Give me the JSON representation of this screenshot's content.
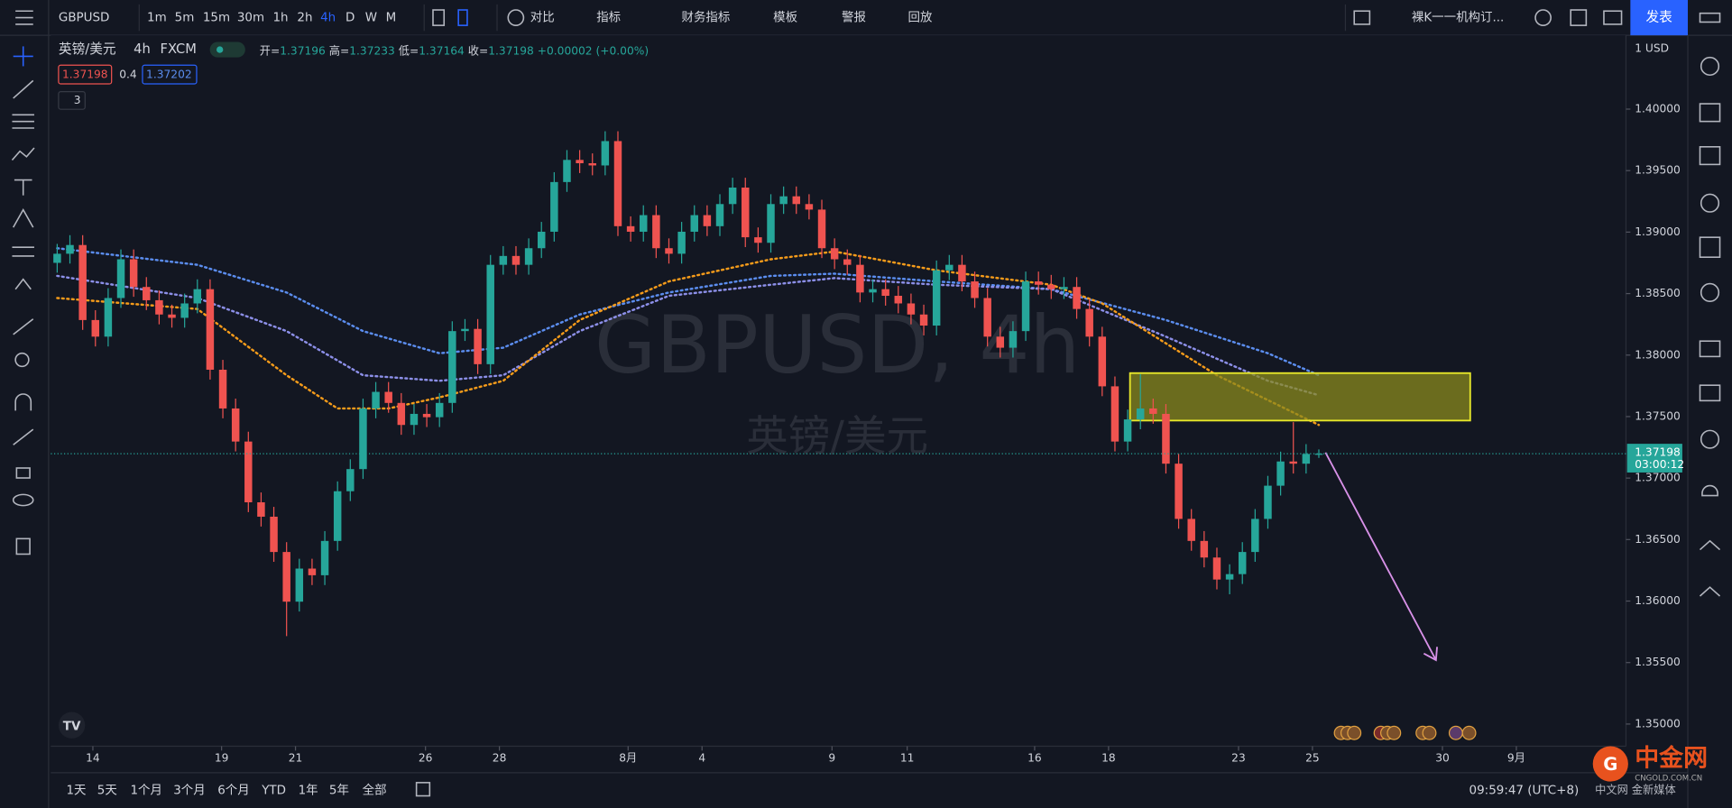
{
  "toolbar": {
    "symbol": "GBPUSD",
    "intervals": [
      "1m",
      "5m",
      "15m",
      "30m",
      "1h",
      "2h",
      "4h",
      "D",
      "W",
      "M"
    ],
    "active_interval": 6,
    "tools": [
      "对比",
      "指标",
      "财务指标",
      "模板",
      "警报",
      "回放"
    ],
    "layout_name": "裸K一一机构订...",
    "publish": "发表"
  },
  "legend": {
    "name": "英镑/美元",
    "interval": "4h",
    "source": "FXCM",
    "ohlc_labels": [
      "开=",
      "高=",
      "低=",
      "收="
    ],
    "change": "+0.00002 (+0.00%)",
    "bid": "1.37198",
    "spread": "0.4",
    "ask": "1.37202",
    "collapsed": "3"
  },
  "watermark": {
    "symbol": "GBPUSD, 4h",
    "name": "英镑/美元"
  },
  "currency": "1 USD",
  "countdown": "03:00:12",
  "chart_data": {
    "type": "candlestick",
    "up_color": "#26a69a",
    "down_color": "#ef5350",
    "xlim": [
      -0.5,
      123.1
    ],
    "xticks": [
      {
        "value": 2.8,
        "label": "14"
      },
      {
        "value": 12.9,
        "label": "19"
      },
      {
        "value": 18.7,
        "label": "21"
      },
      {
        "value": 28.9,
        "label": "26"
      },
      {
        "value": 34.7,
        "label": "28"
      },
      {
        "value": 44.8,
        "label": "8月"
      },
      {
        "value": 50.6,
        "label": "4"
      },
      {
        "value": 60.8,
        "label": "9"
      },
      {
        "value": 66.7,
        "label": "11"
      },
      {
        "value": 76.7,
        "label": "16"
      },
      {
        "value": 82.5,
        "label": "18"
      },
      {
        "value": 92.7,
        "label": "23"
      },
      {
        "value": 98.5,
        "label": "25"
      },
      {
        "value": 108.7,
        "label": "30"
      },
      {
        "value": 114.5,
        "label": "9月"
      }
    ],
    "ylim": [
      1.3482,
      1.406
    ],
    "yticks": [
      {
        "value": 1.4,
        "label": "1.40000"
      },
      {
        "value": 1.395,
        "label": "1.39500"
      },
      {
        "value": 1.39,
        "label": "1.39000"
      },
      {
        "value": 1.385,
        "label": "1.38500"
      },
      {
        "value": 1.38,
        "label": "1.38000"
      },
      {
        "value": 1.375,
        "label": "1.37500"
      },
      {
        "value": 1.37,
        "label": "1.37000"
      },
      {
        "value": 1.365,
        "label": "1.36500"
      },
      {
        "value": 1.36,
        "label": "1.36000"
      },
      {
        "value": 1.355,
        "label": "1.35500"
      },
      {
        "value": 1.35,
        "label": "1.35000"
      }
    ],
    "candles": [
      [
        1.3875,
        1.38904,
        1.3867,
        1.38824
      ],
      [
        1.38824,
        1.38975,
        1.38744,
        1.38895
      ],
      [
        1.38895,
        1.38975,
        1.38205,
        1.38285
      ],
      [
        1.38285,
        1.38365,
        1.3807,
        1.3815
      ],
      [
        1.3815,
        1.38544,
        1.3807,
        1.38464
      ],
      [
        1.38464,
        1.38859,
        1.38384,
        1.38779
      ],
      [
        1.38779,
        1.38859,
        1.38474,
        1.38554
      ],
      [
        1.38554,
        1.38634,
        1.38366,
        1.38446
      ],
      [
        1.38446,
        1.38526,
        1.3825,
        1.3833
      ],
      [
        1.3833,
        1.3841,
        1.38223,
        1.38303
      ],
      [
        1.38303,
        1.385,
        1.38223,
        1.3842
      ],
      [
        1.3842,
        1.38616,
        1.3834,
        1.38536
      ],
      [
        1.38536,
        1.38616,
        1.37801,
        1.37881
      ],
      [
        1.37881,
        1.37961,
        1.37486,
        1.37566
      ],
      [
        1.37566,
        1.37646,
        1.37217,
        1.37297
      ],
      [
        1.37297,
        1.37377,
        1.36723,
        1.36803
      ],
      [
        1.36803,
        1.36883,
        1.36606,
        1.36686
      ],
      [
        1.36686,
        1.36766,
        1.36319,
        1.36399
      ],
      [
        1.36399,
        1.36479,
        1.35715,
        1.35995
      ],
      [
        1.35995,
        1.36344,
        1.35915,
        1.36264
      ],
      [
        1.36264,
        1.36344,
        1.3613,
        1.3621
      ],
      [
        1.3621,
        1.36569,
        1.3613,
        1.36489
      ],
      [
        1.36489,
        1.36973,
        1.36409,
        1.36893
      ],
      [
        1.36893,
        1.37153,
        1.36813,
        1.37073
      ],
      [
        1.37073,
        1.37646,
        1.36993,
        1.37566
      ],
      [
        1.37566,
        1.37781,
        1.37486,
        1.37701
      ],
      [
        1.37701,
        1.37781,
        1.37531,
        1.37611
      ],
      [
        1.37611,
        1.37691,
        1.37352,
        1.37432
      ],
      [
        1.37432,
        1.37602,
        1.37352,
        1.37522
      ],
      [
        1.37522,
        1.37602,
        1.37415,
        1.37495
      ],
      [
        1.37495,
        1.37691,
        1.37415,
        1.37611
      ],
      [
        1.37611,
        1.38275,
        1.37531,
        1.38195
      ],
      [
        1.38195,
        1.38293,
        1.38115,
        1.38213
      ],
      [
        1.38213,
        1.38293,
        1.37846,
        1.37926
      ],
      [
        1.37926,
        1.38814,
        1.37846,
        1.38734
      ],
      [
        1.38734,
        1.38886,
        1.38654,
        1.38806
      ],
      [
        1.38806,
        1.38886,
        1.38654,
        1.38734
      ],
      [
        1.38734,
        1.38949,
        1.38654,
        1.38869
      ],
      [
        1.38869,
        1.39083,
        1.38789,
        1.39003
      ],
      [
        1.39003,
        1.39487,
        1.38923,
        1.39407
      ],
      [
        1.39407,
        1.39667,
        1.39327,
        1.39587
      ],
      [
        1.39587,
        1.39667,
        1.3948,
        1.3956
      ],
      [
        1.3956,
        1.3964,
        1.39462,
        1.39542
      ],
      [
        1.39542,
        1.3982,
        1.39462,
        1.3974
      ],
      [
        1.3974,
        1.3982,
        1.38968,
        1.39048
      ],
      [
        1.39048,
        1.39128,
        1.38923,
        1.39003
      ],
      [
        1.39003,
        1.39218,
        1.38923,
        1.39138
      ],
      [
        1.39138,
        1.39218,
        1.38789,
        1.38869
      ],
      [
        1.38869,
        1.38949,
        1.38744,
        1.38824
      ],
      [
        1.38824,
        1.39083,
        1.38744,
        1.39003
      ],
      [
        1.39003,
        1.39218,
        1.38923,
        1.39138
      ],
      [
        1.39138,
        1.39218,
        1.38968,
        1.39048
      ],
      [
        1.39048,
        1.39308,
        1.38968,
        1.39228
      ],
      [
        1.39228,
        1.39442,
        1.39148,
        1.39362
      ],
      [
        1.39362,
        1.39442,
        1.38878,
        1.38958
      ],
      [
        1.38958,
        1.39038,
        1.38833,
        1.38913
      ],
      [
        1.38913,
        1.39308,
        1.38833,
        1.39228
      ],
      [
        1.39228,
        1.39371,
        1.39148,
        1.39291
      ],
      [
        1.39291,
        1.39371,
        1.39148,
        1.39228
      ],
      [
        1.39228,
        1.39308,
        1.39103,
        1.39183
      ],
      [
        1.39183,
        1.39263,
        1.38789,
        1.38869
      ],
      [
        1.38869,
        1.38949,
        1.38699,
        1.38779
      ],
      [
        1.38779,
        1.38859,
        1.38654,
        1.38734
      ],
      [
        1.38734,
        1.38814,
        1.38429,
        1.38509
      ],
      [
        1.38509,
        1.38616,
        1.38429,
        1.38536
      ],
      [
        1.38536,
        1.38616,
        1.38402,
        1.38482
      ],
      [
        1.38482,
        1.38562,
        1.3834,
        1.3842
      ],
      [
        1.3842,
        1.385,
        1.3825,
        1.3833
      ],
      [
        1.3833,
        1.3841,
        1.3816,
        1.3824
      ],
      [
        1.3824,
        1.38769,
        1.3816,
        1.38689
      ],
      [
        1.38689,
        1.38814,
        1.38609,
        1.38734
      ],
      [
        1.38734,
        1.38814,
        1.38519,
        1.38599
      ],
      [
        1.38599,
        1.38679,
        1.38384,
        1.38464
      ],
      [
        1.38464,
        1.38544,
        1.3807,
        1.3815
      ],
      [
        1.3815,
        1.3823,
        1.3798,
        1.3806
      ],
      [
        1.3806,
        1.38275,
        1.3798,
        1.38195
      ],
      [
        1.38195,
        1.38679,
        1.38115,
        1.38599
      ],
      [
        1.38599,
        1.38679,
        1.38492,
        1.38572
      ],
      [
        1.38572,
        1.38652,
        1.38456,
        1.38536
      ],
      [
        1.38536,
        1.38634,
        1.38456,
        1.38554
      ],
      [
        1.38554,
        1.38634,
        1.38295,
        1.38375
      ],
      [
        1.38375,
        1.38455,
        1.3807,
        1.3815
      ],
      [
        1.3815,
        1.3823,
        1.37666,
        1.37746
      ],
      [
        1.37746,
        1.37826,
        1.37217,
        1.37297
      ],
      [
        1.37297,
        1.37557,
        1.37217,
        1.37477
      ],
      [
        1.37477,
        1.37846,
        1.37397,
        1.37566
      ],
      [
        1.37566,
        1.37646,
        1.37442,
        1.37522
      ],
      [
        1.37522,
        1.37602,
        1.37037,
        1.37117
      ],
      [
        1.37117,
        1.37197,
        1.36588,
        1.36668
      ],
      [
        1.36668,
        1.36748,
        1.36409,
        1.36489
      ],
      [
        1.36489,
        1.36569,
        1.36274,
        1.36354
      ],
      [
        1.36354,
        1.36434,
        1.36095,
        1.36175
      ],
      [
        1.36175,
        1.36299,
        1.36055,
        1.36219
      ],
      [
        1.36219,
        1.36479,
        1.36139,
        1.36399
      ],
      [
        1.36399,
        1.36748,
        1.36319,
        1.36668
      ],
      [
        1.36668,
        1.37018,
        1.36588,
        1.36938
      ],
      [
        1.36938,
        1.37215,
        1.36858,
        1.37135
      ],
      [
        1.37135,
        1.37455,
        1.37037,
        1.37117
      ],
      [
        1.37117,
        1.37276,
        1.37037,
        1.37196
      ],
      [
        1.37196,
        1.37233,
        1.37164,
        1.37198
      ]
    ],
    "overlays": [
      {
        "color": "#5b8def",
        "x": [
          0,
          11,
          18,
          24,
          30,
          35,
          41,
          48,
          56,
          61,
          69,
          78,
          87,
          95,
          99
        ],
        "values": [
          1.38869,
          1.38734,
          1.38509,
          1.38195,
          1.38015,
          1.3806,
          1.3833,
          1.38509,
          1.38644,
          1.38662,
          1.38599,
          1.38536,
          1.38285,
          1.38015,
          1.37836
        ]
      },
      {
        "color": "#8c8fe8",
        "x": [
          0,
          11,
          18,
          24,
          30,
          35,
          41,
          48,
          56,
          61,
          69,
          78,
          87,
          95,
          99
        ],
        "values": [
          1.38644,
          1.38464,
          1.38195,
          1.37836,
          1.37791,
          1.37836,
          1.38195,
          1.38482,
          1.38572,
          1.38626,
          1.38572,
          1.38536,
          1.3815,
          1.37791,
          1.37674
        ]
      },
      {
        "color": "#f59b1a",
        "x": [
          0,
          11,
          18,
          22,
          26,
          30,
          35,
          41,
          48,
          56,
          61,
          69,
          78,
          82,
          91,
          99
        ],
        "values": [
          1.38464,
          1.38375,
          1.37836,
          1.37566,
          1.37566,
          1.37656,
          1.37791,
          1.38285,
          1.38599,
          1.38779,
          1.38842,
          1.38689,
          1.38572,
          1.3842,
          1.37836,
          1.37432
        ]
      }
    ]
  },
  "bottom_bar": {
    "ranges": [
      "1天",
      "5天",
      "1个月",
      "3个月",
      "6个月",
      "YTD",
      "1年",
      "5年",
      "全部"
    ],
    "clock": "09:59:47 (UTC+8)"
  },
  "brand": {
    "name": "中金网",
    "url": "CNGOLD.COM.CN",
    "tagline": "中文网 金新媒体"
  }
}
